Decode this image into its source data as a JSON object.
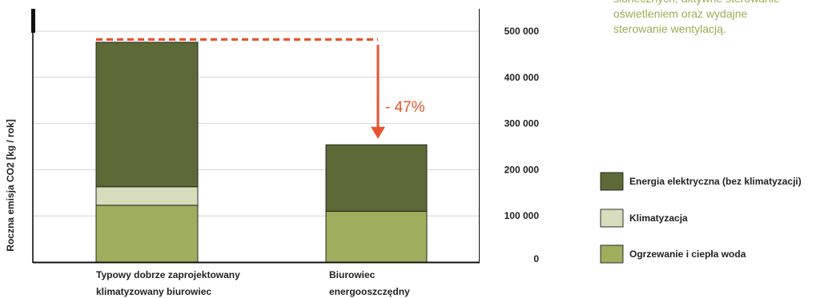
{
  "chart_data": {
    "type": "bar",
    "stacked": true,
    "categories": [
      [
        "Typowy dobrze zaprojektowany",
        "klimatyzowany biurowiec"
      ],
      [
        "Biurowiec",
        "energooszczędny"
      ]
    ],
    "series": [
      {
        "name": "Ogrzewanie i ciepła woda",
        "color": "#9eae5c",
        "values": [
          123000,
          110000
        ]
      },
      {
        "name": "Klimatyzacja",
        "color": "#d6dcbc",
        "values": [
          40000,
          0
        ]
      },
      {
        "name": "Energia elektryczna (bez klimatyzacji)",
        "color": "#5b6a36",
        "values": [
          313000,
          144000
        ]
      }
    ],
    "ylabel": "Roczna emisja CO2 [kg / rok]",
    "ylim": [
      0,
      500000
    ],
    "yticks": [
      0,
      100000,
      200000,
      300000,
      400000,
      500000
    ],
    "ytick_labels": [
      "0",
      "100 000",
      "200 000",
      "300 000",
      "400 000",
      "500 000"
    ],
    "grid": true,
    "legend_position": "right",
    "legend_order": [
      2,
      1,
      0
    ],
    "annotation": {
      "text": "- 47%",
      "color": "#e8542e",
      "reference_value": 482000,
      "arrow_to_value": 260000
    }
  },
  "side_note": {
    "lines": [
      "słonecznych, aktywne sterowanie",
      "oświetleniem oraz wydajne",
      "sterowanie wentylacją."
    ]
  }
}
